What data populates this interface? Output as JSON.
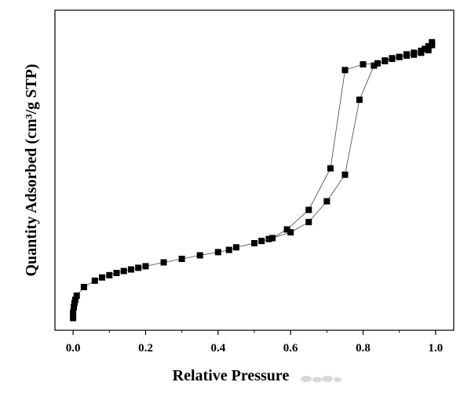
{
  "chart_data": {
    "type": "scatter",
    "title": "",
    "xlabel": "Relative Pressure",
    "ylabel": "Quantity Adsorbed (cm³/g STP)",
    "xlim": [
      -0.05,
      1.05
    ],
    "ylim": [
      0,
      100
    ],
    "x_ticks": [
      "0.0",
      "0.2",
      "0.4",
      "0.6",
      "0.8",
      "1.0"
    ],
    "x_tick_values": [
      0.0,
      0.2,
      0.4,
      0.6,
      0.8,
      1.0
    ],
    "y_ticks_shown": false,
    "grid": false,
    "marker": "square",
    "color": "#000000",
    "series": [
      {
        "x": [
          0.0,
          0.0,
          0.002,
          0.004,
          0.006,
          0.01,
          0.03,
          0.06,
          0.08,
          0.1,
          0.12,
          0.14,
          0.16,
          0.18,
          0.2,
          0.25,
          0.3,
          0.35,
          0.4,
          0.43,
          0.45,
          0.5,
          0.54,
          0.6,
          0.65,
          0.7,
          0.75,
          0.79,
          0.83,
          0.86,
          0.88,
          0.9,
          0.92,
          0.94,
          0.96,
          0.98,
          0.99
        ],
        "y": [
          3.8,
          5.5,
          7.2,
          8.5,
          9.5,
          10.8,
          13.5,
          15.5,
          16.5,
          17.2,
          17.9,
          18.5,
          19.0,
          19.5,
          20.0,
          21.2,
          22.3,
          23.4,
          24.4,
          25.1,
          25.9,
          27.2,
          28.5,
          30.6,
          33.8,
          40.3,
          48.6,
          72.0,
          82.7,
          84.3,
          85.0,
          85.4,
          85.8,
          86.1,
          86.7,
          87.5,
          89.1
        ]
      },
      {
        "x": [
          0.99,
          0.98,
          0.97,
          0.96,
          0.94,
          0.92,
          0.9,
          0.88,
          0.86,
          0.84,
          0.8,
          0.75,
          0.71,
          0.65,
          0.59,
          0.55,
          0.52
        ],
        "y": [
          90.0,
          88.7,
          87.9,
          87.3,
          86.7,
          86.2,
          85.4,
          84.8,
          84.1,
          83.4,
          83.1,
          81.3,
          50.6,
          37.6,
          31.5,
          28.8,
          27.9
        ]
      }
    ]
  }
}
